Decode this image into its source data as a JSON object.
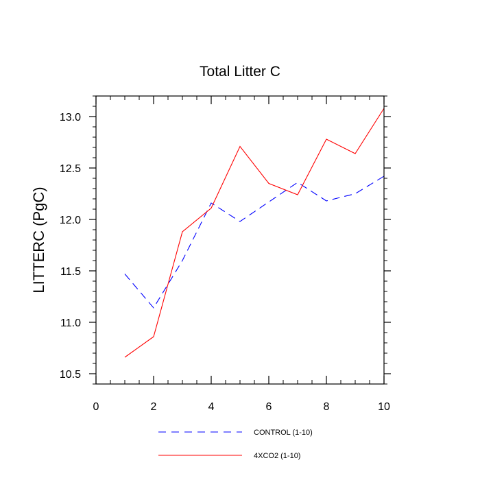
{
  "chart_data": {
    "type": "line",
    "title": "Total Litter C",
    "xlabel": "",
    "ylabel": "LITTERC  (PgC)",
    "xlim": [
      0,
      10
    ],
    "ylim": [
      10.4,
      13.2
    ],
    "xticks": [
      0,
      2,
      4,
      6,
      8,
      10
    ],
    "yticks": [
      10.5,
      11.0,
      11.5,
      12.0,
      12.5,
      13.0
    ],
    "xtick_labels": [
      "0",
      "2",
      "4",
      "6",
      "8",
      "10"
    ],
    "ytick_labels": [
      "10.5",
      "11.0",
      "11.5",
      "12.0",
      "12.5",
      "13.0"
    ],
    "grid": false,
    "legend_position": "bottom",
    "x": [
      1,
      2,
      3,
      4,
      5,
      6,
      7,
      8,
      9,
      10
    ],
    "series": [
      {
        "name": "CONTROL (1-10)",
        "color": "#0000ff",
        "dash": "dashed",
        "values": [
          11.47,
          11.14,
          11.6,
          12.16,
          11.98,
          12.17,
          12.36,
          12.18,
          12.25,
          12.42
        ]
      },
      {
        "name": "4XCO2 (1-10)",
        "color": "#ff0000",
        "dash": "solid",
        "values": [
          10.66,
          10.86,
          11.88,
          12.11,
          12.71,
          12.35,
          12.24,
          12.78,
          12.64,
          13.08
        ]
      }
    ]
  }
}
